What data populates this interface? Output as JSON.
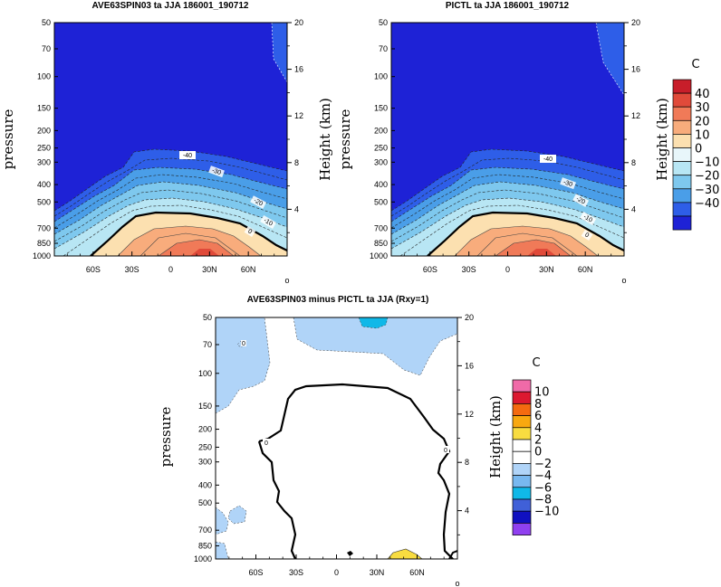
{
  "chart_data": [
    {
      "type": "contour",
      "title": "AVE63SPIN03 ta JJA 186001_190712",
      "ylabel": "pressure",
      "ylabel_right": "Height (km)",
      "xtick_labels": [
        "60S",
        "30S",
        "0",
        "30N",
        "60N"
      ],
      "xtick_values": [
        -60,
        -30,
        0,
        30,
        60
      ],
      "xlim": [
        -90,
        90
      ],
      "ytick_labels": [
        "50",
        "70",
        "100",
        "150",
        "200",
        "250",
        "300",
        "400",
        "500",
        "700",
        "850",
        "1000"
      ],
      "ytick_values": [
        50,
        70,
        100,
        150,
        200,
        250,
        300,
        400,
        500,
        700,
        850,
        1000
      ],
      "ylim": [
        1000,
        50
      ],
      "yscale": "log",
      "height_tick_labels": [
        "20",
        "16",
        "12",
        "8",
        "4"
      ],
      "height_tick_values": [
        20,
        16,
        12,
        8,
        4
      ],
      "contour_labels": [
        "-40",
        "-30",
        "-20",
        "-10",
        "0"
      ],
      "contour_levels": [
        -40,
        -30,
        -20,
        -10,
        0,
        10,
        20
      ],
      "corner_label": "o"
    },
    {
      "type": "contour",
      "title": "PICTL ta JJA 186001_190712",
      "ylabel": "pressure",
      "ylabel_right": "Height (km)",
      "xtick_labels": [
        "60S",
        "30S",
        "0",
        "30N",
        "60N"
      ],
      "xtick_values": [
        -60,
        -30,
        0,
        30,
        60
      ],
      "xlim": [
        -90,
        90
      ],
      "ytick_labels": [
        "50",
        "70",
        "100",
        "150",
        "200",
        "250",
        "300",
        "400",
        "500",
        "700",
        "850",
        "1000"
      ],
      "ytick_values": [
        50,
        70,
        100,
        150,
        200,
        250,
        300,
        400,
        500,
        700,
        850,
        1000
      ],
      "ylim": [
        1000,
        50
      ],
      "yscale": "log",
      "height_tick_labels": [
        "20",
        "16",
        "12",
        "8",
        "4"
      ],
      "height_tick_values": [
        20,
        16,
        12,
        8,
        4
      ],
      "contour_labels": [
        "-40",
        "-30",
        "-20",
        "-10",
        "0"
      ],
      "contour_levels": [
        -40,
        -30,
        -20,
        -10,
        0,
        10,
        20
      ],
      "corner_label": "o",
      "legend": {
        "unit": "C",
        "labels": [
          "40",
          "30",
          "20",
          "10",
          "0",
          "−10",
          "−20",
          "−30",
          "−40"
        ],
        "colors": [
          "#c81e2a",
          "#e04a3a",
          "#f07a58",
          "#f8ac7c",
          "#fce0b0",
          "#e8f6fa",
          "#b8e6f4",
          "#7ec8ee",
          "#4a9ee8",
          "#2e5ee8",
          "#1e22d6"
        ]
      }
    },
    {
      "type": "contour",
      "title": "AVE63SPIN03 minus PICTL ta JJA (Rxy=1)",
      "ylabel": "pressure",
      "ylabel_right": "Height (km)",
      "xtick_labels": [
        "60S",
        "30S",
        "0",
        "30N",
        "60N"
      ],
      "xtick_values": [
        -60,
        -30,
        0,
        30,
        60
      ],
      "xlim": [
        -90,
        90
      ],
      "ytick_labels": [
        "50",
        "70",
        "100",
        "150",
        "200",
        "250",
        "300",
        "400",
        "500",
        "700",
        "850",
        "1000"
      ],
      "ytick_values": [
        50,
        70,
        100,
        150,
        200,
        250,
        300,
        400,
        500,
        700,
        850,
        1000
      ],
      "ylim": [
        1000,
        50
      ],
      "yscale": "log",
      "height_tick_labels": [
        "20",
        "16",
        "12",
        "8",
        "4"
      ],
      "height_tick_values": [
        20,
        16,
        12,
        8,
        4
      ],
      "contour_labels": [
        "0",
        "0",
        "0"
      ],
      "corner_label": "o",
      "legend": {
        "unit": "C",
        "labels": [
          "10",
          "8",
          "6",
          "4",
          "2",
          "0",
          "−2",
          "−4",
          "−6",
          "−8",
          "−10"
        ],
        "colors": [
          "#f06aa8",
          "#dc1830",
          "#f46a10",
          "#f8a810",
          "#f8dc40",
          "#ffffff",
          "#ffffff",
          "#b0d4f8",
          "#78b8f0",
          "#10b8e8",
          "#4060d8",
          "#1010c0",
          "#9040f0"
        ]
      }
    }
  ]
}
